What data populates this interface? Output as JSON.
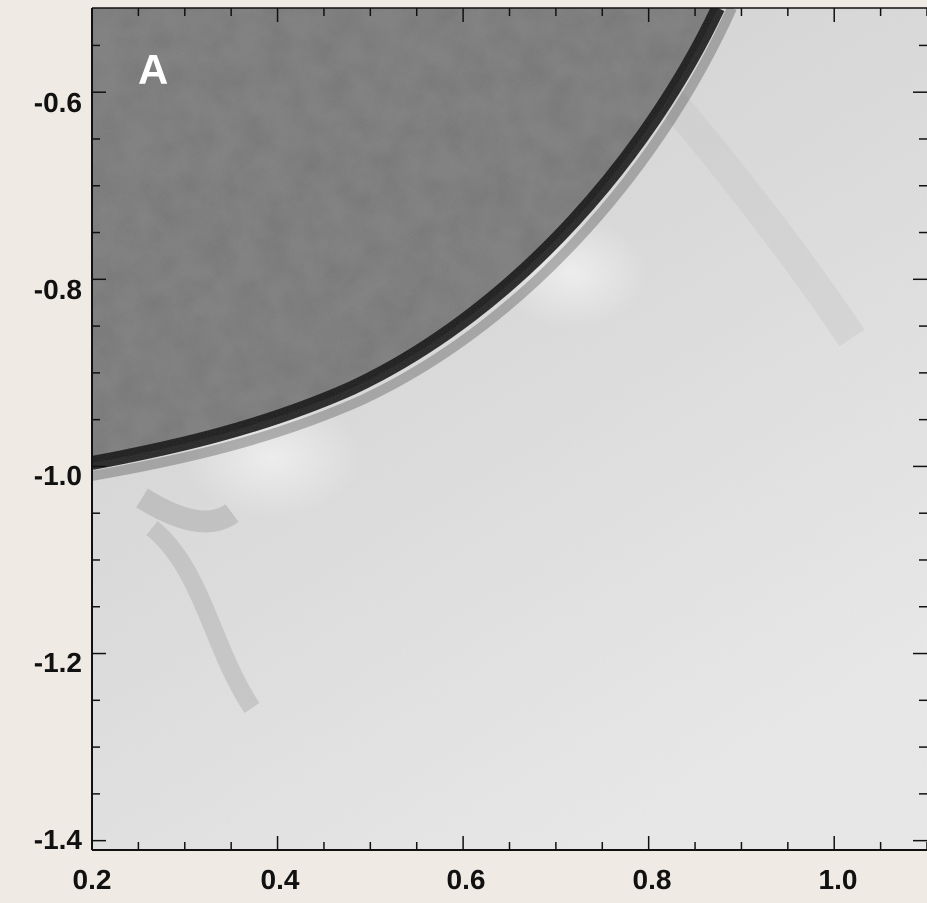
{
  "panel": {
    "label": "A"
  },
  "axes": {
    "x": {
      "ticks": [
        "0.2",
        "0.4",
        "0.6",
        "0.8",
        "1.0"
      ],
      "range": [
        0.2,
        1.1
      ]
    },
    "y": {
      "ticks": [
        "-0.6",
        "-0.8",
        "-1.0",
        "-1.2",
        "-1.4"
      ],
      "range": [
        -1.41,
        -0.51
      ]
    }
  },
  "colors": {
    "disk_dark": "#4a4a4a",
    "disk_mid": "#8c8c8c",
    "limb_edge": "#0d0d0d",
    "corona_light": "#e6e6e6",
    "background": "#efeae3"
  }
}
